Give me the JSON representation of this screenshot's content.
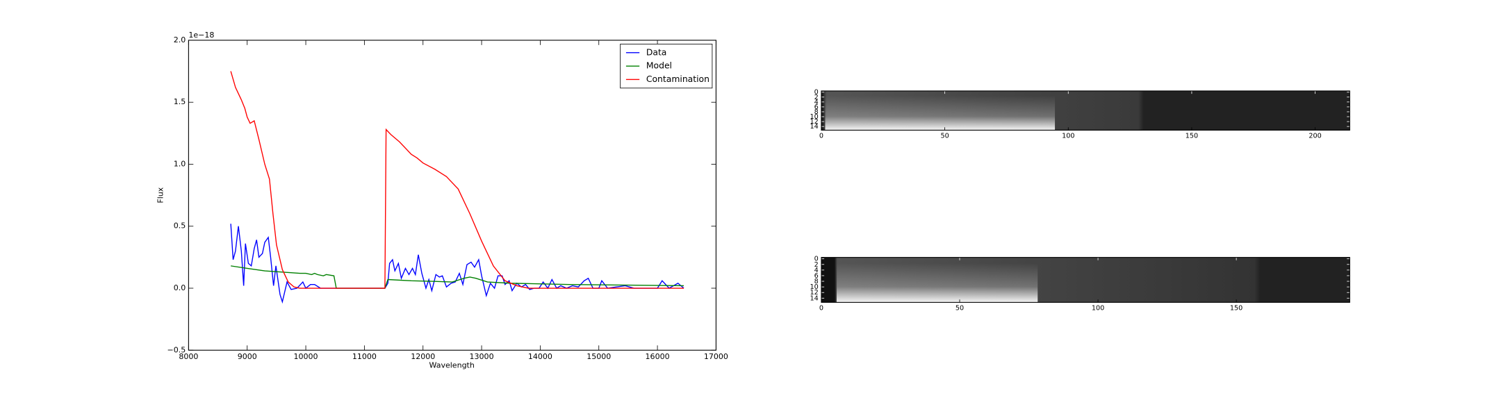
{
  "chart_data": [
    {
      "type": "line",
      "xlabel": "Wavelength",
      "ylabel": "Flux",
      "offset_text": "1e−18",
      "xlim": [
        8000,
        17000
      ],
      "ylim": [
        -0.5,
        2.0
      ],
      "xticks": [
        8000,
        9000,
        10000,
        11000,
        12000,
        13000,
        14000,
        15000,
        16000,
        17000
      ],
      "yticks": [
        {
          "value": -0.5,
          "label": "−0.5"
        },
        {
          "value": 0,
          "label": "0.0"
        },
        0.5,
        {
          "value": 1,
          "label": "1.0"
        },
        1.5,
        {
          "value": 2,
          "label": "2.0"
        }
      ],
      "legend": "upper right",
      "series": [
        {
          "name": "Data",
          "color": "#0000ff",
          "x": [
            8720,
            8760,
            8800,
            8850,
            8900,
            8940,
            8970,
            9020,
            9070,
            9120,
            9160,
            9200,
            9260,
            9300,
            9360,
            9400,
            9450,
            9490,
            9560,
            9600,
            9680,
            9750,
            9850,
            9950,
            10000,
            10080,
            10150,
            10250,
            11350,
            11400,
            11430,
            11480,
            11520,
            11580,
            11630,
            11700,
            11760,
            11820,
            11870,
            11920,
            11980,
            12050,
            12100,
            12150,
            12220,
            12280,
            12330,
            12400,
            12480,
            12550,
            12620,
            12680,
            12750,
            12820,
            12880,
            12950,
            13000,
            13080,
            13150,
            13220,
            13280,
            13350,
            13400,
            13470,
            13520,
            13600,
            13680,
            13750,
            13820,
            13900,
            13980,
            14050,
            14130,
            14200,
            14280,
            14350,
            14450,
            14550,
            14650,
            14750,
            14820,
            14900,
            15000,
            15050,
            15150,
            15300,
            15450,
            15600,
            16000,
            16080,
            16200,
            16350,
            16450
          ],
          "values": [
            0.52,
            0.23,
            0.3,
            0.5,
            0.3,
            0.02,
            0.36,
            0.2,
            0.18,
            0.32,
            0.39,
            0.25,
            0.28,
            0.37,
            0.41,
            0.25,
            0.02,
            0.18,
            -0.05,
            -0.11,
            0.05,
            -0.01,
            0.0,
            0.05,
            0.0,
            0.03,
            0.03,
            0.0,
            0.0,
            0.04,
            0.2,
            0.23,
            0.14,
            0.2,
            0.08,
            0.16,
            0.11,
            0.16,
            0.11,
            0.27,
            0.12,
            0.0,
            0.07,
            -0.02,
            0.11,
            0.09,
            0.1,
            0.01,
            0.04,
            0.05,
            0.12,
            0.03,
            0.19,
            0.21,
            0.17,
            0.23,
            0.1,
            -0.06,
            0.04,
            0.0,
            0.1,
            0.1,
            0.03,
            0.06,
            -0.02,
            0.04,
            0.01,
            0.03,
            -0.01,
            0.0,
            0.0,
            0.05,
            0.0,
            0.07,
            0.0,
            0.02,
            0.0,
            0.02,
            0.01,
            0.06,
            0.08,
            0.0,
            0.0,
            0.06,
            0.0,
            0.01,
            0.02,
            0.0,
            0.0,
            0.06,
            0.0,
            0.04,
            0.0
          ]
        },
        {
          "name": "Model",
          "color": "#008000",
          "x": [
            8720,
            9000,
            9300,
            9600,
            9900,
            10000,
            10100,
            10150,
            10200,
            10300,
            10350,
            10480,
            10520,
            11350,
            11400,
            11800,
            12200,
            12500,
            12700,
            12800,
            12900,
            13100,
            13500,
            14500,
            15500,
            16450
          ],
          "values": [
            0.18,
            0.16,
            0.14,
            0.13,
            0.12,
            0.12,
            0.11,
            0.12,
            0.11,
            0.1,
            0.11,
            0.1,
            0.0,
            0.0,
            0.07,
            0.06,
            0.055,
            0.05,
            0.08,
            0.09,
            0.08,
            0.05,
            0.04,
            0.03,
            0.025,
            0.02
          ]
        },
        {
          "name": "Contamination",
          "color": "#ff0000",
          "x": [
            8720,
            8800,
            8900,
            8960,
            9000,
            9050,
            9120,
            9200,
            9300,
            9380,
            9440,
            9500,
            9600,
            9700,
            9800,
            9900,
            11350,
            11370,
            11450,
            11600,
            11800,
            11900,
            12000,
            12200,
            12400,
            12600,
            12800,
            13000,
            13200,
            13400,
            13600,
            13800,
            16450
          ],
          "values": [
            1.75,
            1.62,
            1.52,
            1.45,
            1.38,
            1.33,
            1.35,
            1.2,
            1.0,
            0.88,
            0.6,
            0.35,
            0.15,
            0.05,
            0.01,
            0.0,
            0.0,
            1.28,
            1.24,
            1.18,
            1.08,
            1.05,
            1.01,
            0.96,
            0.9,
            0.8,
            0.6,
            0.38,
            0.18,
            0.06,
            0.02,
            0.0,
            0.0
          ]
        }
      ]
    },
    {
      "type": "image",
      "xlim": [
        0,
        214
      ],
      "ylim": [
        15.5,
        -0.5
      ],
      "xticks": [
        0,
        50,
        100,
        150,
        200
      ],
      "yticks": [
        0,
        2,
        4,
        6,
        8,
        10,
        12,
        14
      ]
    },
    {
      "type": "image",
      "xlim": [
        0,
        191
      ],
      "ylim": [
        15.5,
        -0.5
      ],
      "xticks": [
        0,
        50,
        100,
        150
      ],
      "yticks": [
        0,
        2,
        4,
        6,
        8,
        10,
        12,
        14
      ]
    }
  ]
}
